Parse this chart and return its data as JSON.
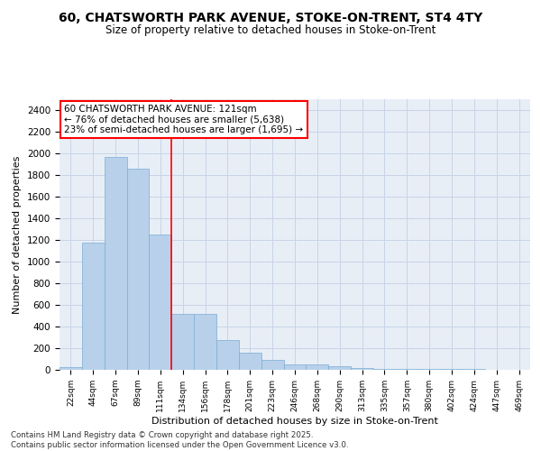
{
  "title_line1": "60, CHATSWORTH PARK AVENUE, STOKE-ON-TRENT, ST4 4TY",
  "title_line2": "Size of property relative to detached houses in Stoke-on-Trent",
  "xlabel": "Distribution of detached houses by size in Stoke-on-Trent",
  "ylabel": "Number of detached properties",
  "categories": [
    "22sqm",
    "44sqm",
    "67sqm",
    "89sqm",
    "111sqm",
    "134sqm",
    "156sqm",
    "178sqm",
    "201sqm",
    "223sqm",
    "246sqm",
    "268sqm",
    "290sqm",
    "313sqm",
    "335sqm",
    "357sqm",
    "380sqm",
    "402sqm",
    "424sqm",
    "447sqm",
    "469sqm"
  ],
  "values": [
    25,
    1175,
    1970,
    1860,
    1250,
    520,
    520,
    275,
    160,
    90,
    48,
    48,
    35,
    15,
    5,
    5,
    5,
    5,
    5,
    2,
    2
  ],
  "bar_color": "#b8d0ea",
  "bar_edgecolor": "#7aaed4",
  "vline_x": 4.5,
  "vline_color": "red",
  "annotation_text": "60 CHATSWORTH PARK AVENUE: 121sqm\n← 76% of detached houses are smaller (5,638)\n23% of semi-detached houses are larger (1,695) →",
  "ylim": [
    0,
    2500
  ],
  "yticks": [
    0,
    200,
    400,
    600,
    800,
    1000,
    1200,
    1400,
    1600,
    1800,
    2000,
    2200,
    2400
  ],
  "grid_color": "#c8d4e8",
  "bg_color": "#e8eef6",
  "footer_text": "Contains HM Land Registry data © Crown copyright and database right 2025.\nContains public sector information licensed under the Open Government Licence v3.0."
}
